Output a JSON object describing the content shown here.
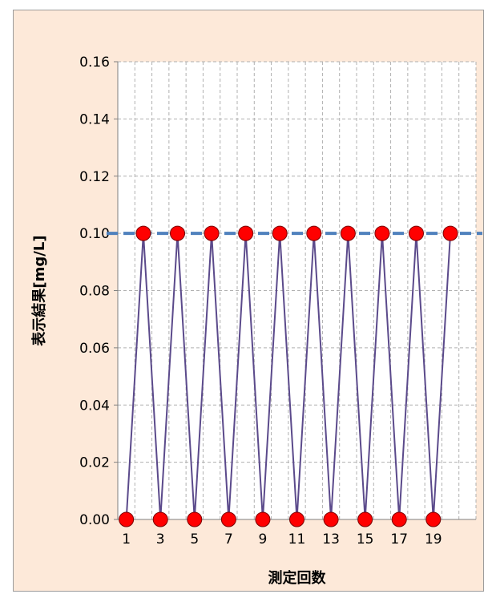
{
  "chart_data": {
    "type": "line",
    "title": "",
    "xlabel": "測定回数",
    "ylabel": "表示結果[mg/L]",
    "x": [
      1,
      2,
      3,
      4,
      5,
      6,
      7,
      8,
      9,
      10,
      11,
      12,
      13,
      14,
      15,
      16,
      17,
      18,
      19,
      20
    ],
    "x_tick_labels": [
      "1",
      "3",
      "5",
      "7",
      "9",
      "11",
      "13",
      "15",
      "17",
      "19"
    ],
    "ylim": [
      0,
      0.16
    ],
    "y_ticks": [
      0.0,
      0.02,
      0.04,
      0.06,
      0.08,
      0.1,
      0.12,
      0.14,
      0.16
    ],
    "y_tick_labels": [
      "0.00",
      "0.02",
      "0.04",
      "0.06",
      "0.08",
      "0.10",
      "0.12",
      "0.14",
      "0.16"
    ],
    "series": [
      {
        "values": [
          0,
          0.1,
          0,
          0.1,
          0,
          0.1,
          0,
          0.1,
          0,
          0.1,
          0,
          0.1,
          0,
          0.1,
          0,
          0.1,
          0,
          0.1,
          0,
          0.1
        ],
        "line_color": "#5b4a8b",
        "marker_color": "#ff0000"
      }
    ],
    "reference_line": {
      "value": 0.1,
      "color": "#4f81bd",
      "style": "dashed"
    },
    "grid": true,
    "grid_style": "dashed",
    "plot_background": "#ffffff",
    "chart_background": "#fde9d9"
  }
}
